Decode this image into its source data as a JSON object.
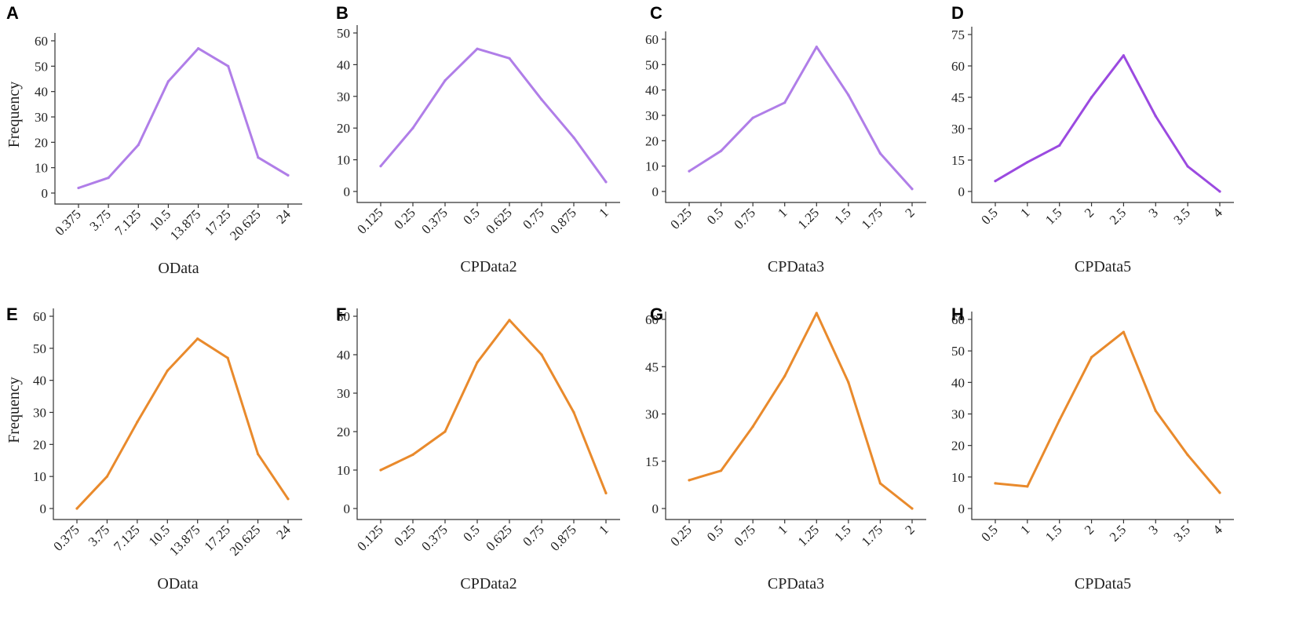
{
  "chart_data": [
    {
      "panel": "A",
      "type": "line",
      "color": "#b07ee8",
      "categories": [
        "0.375",
        "3.75",
        "7.125",
        "10.5",
        "13.875",
        "17.25",
        "20.625",
        "24"
      ],
      "values": [
        2,
        6,
        19,
        44,
        57,
        50,
        14,
        7
      ],
      "xlabel": "OData",
      "ylabel": "Frequency",
      "ylim": [
        0,
        60
      ],
      "yticks": [
        "0",
        "10",
        "20",
        "30",
        "40",
        "50",
        "60"
      ]
    },
    {
      "panel": "B",
      "type": "line",
      "color": "#b07ee8",
      "categories": [
        "0.125",
        "0.25",
        "0.375",
        "0.5",
        "0.625",
        "0.75",
        "0.875",
        "1"
      ],
      "values": [
        8,
        20,
        35,
        45,
        42,
        29,
        17,
        3
      ],
      "xlabel": "CPData2",
      "ylabel": "",
      "ylim": [
        0,
        50
      ],
      "yticks": [
        "0",
        "10",
        "20",
        "30",
        "40",
        "50"
      ]
    },
    {
      "panel": "C",
      "type": "line",
      "color": "#b07ee8",
      "categories": [
        "0.25",
        "0.5",
        "0.75",
        "1",
        "1.25",
        "1.5",
        "1.75",
        "2"
      ],
      "values": [
        8,
        16,
        29,
        35,
        57,
        38,
        15,
        1
      ],
      "xlabel": "CPData3",
      "ylabel": "",
      "ylim": [
        0,
        60
      ],
      "yticks": [
        "0",
        "10",
        "20",
        "30",
        "40",
        "50",
        "60"
      ]
    },
    {
      "panel": "D",
      "type": "line",
      "color": "#9b4ae0",
      "categories": [
        "0.5",
        "1",
        "1.5",
        "2",
        "2.5",
        "3",
        "3.5",
        "4"
      ],
      "values": [
        5,
        14,
        22,
        45,
        65,
        36,
        12,
        0
      ],
      "xlabel": "CPData5",
      "ylabel": "",
      "ylim": [
        0,
        75
      ],
      "yticks": [
        "0",
        "15",
        "30",
        "45",
        "60",
        "75"
      ]
    },
    {
      "panel": "E",
      "type": "line",
      "color": "#e98a2c",
      "categories": [
        "0.375",
        "3.75",
        "7.125",
        "10.5",
        "13.875",
        "17.25",
        "20.625",
        "24"
      ],
      "values": [
        0,
        10,
        27,
        43,
        53,
        47,
        17,
        3
      ],
      "xlabel": "OData",
      "ylabel": "Frequency",
      "ylim": [
        0,
        60
      ],
      "yticks": [
        "0",
        "10",
        "20",
        "30",
        "40",
        "50",
        "60"
      ]
    },
    {
      "panel": "F",
      "type": "line",
      "color": "#e98a2c",
      "categories": [
        "0.125",
        "0.25",
        "0.375",
        "0.5",
        "0.625",
        "0.75",
        "0.875",
        "1"
      ],
      "values": [
        10,
        14,
        20,
        38,
        49,
        40,
        25,
        4
      ],
      "xlabel": "CPData2",
      "ylabel": "",
      "ylim": [
        0,
        50
      ],
      "yticks": [
        "0",
        "10",
        "20",
        "30",
        "40",
        "50"
      ]
    },
    {
      "panel": "G",
      "type": "line",
      "color": "#e98a2c",
      "categories": [
        "0.25",
        "0.5",
        "0.75",
        "1",
        "1.25",
        "1.5",
        "1.75",
        "2"
      ],
      "values": [
        9,
        12,
        26,
        42,
        62,
        40,
        8,
        0
      ],
      "xlabel": "CPData3",
      "ylabel": "",
      "ylim": [
        0,
        60
      ],
      "yticks": [
        "0",
        "15",
        "30",
        "45",
        "60"
      ]
    },
    {
      "panel": "H",
      "type": "line",
      "color": "#e98a2c",
      "categories": [
        "0.5",
        "1",
        "1.5",
        "2",
        "2.5",
        "3",
        "3.5",
        "4"
      ],
      "values": [
        8,
        7,
        28,
        48,
        56,
        31,
        17,
        5
      ],
      "xlabel": "CPData5",
      "ylabel": "",
      "ylim": [
        0,
        60
      ],
      "yticks": [
        "0",
        "10",
        "20",
        "30",
        "40",
        "50",
        "60"
      ]
    }
  ]
}
